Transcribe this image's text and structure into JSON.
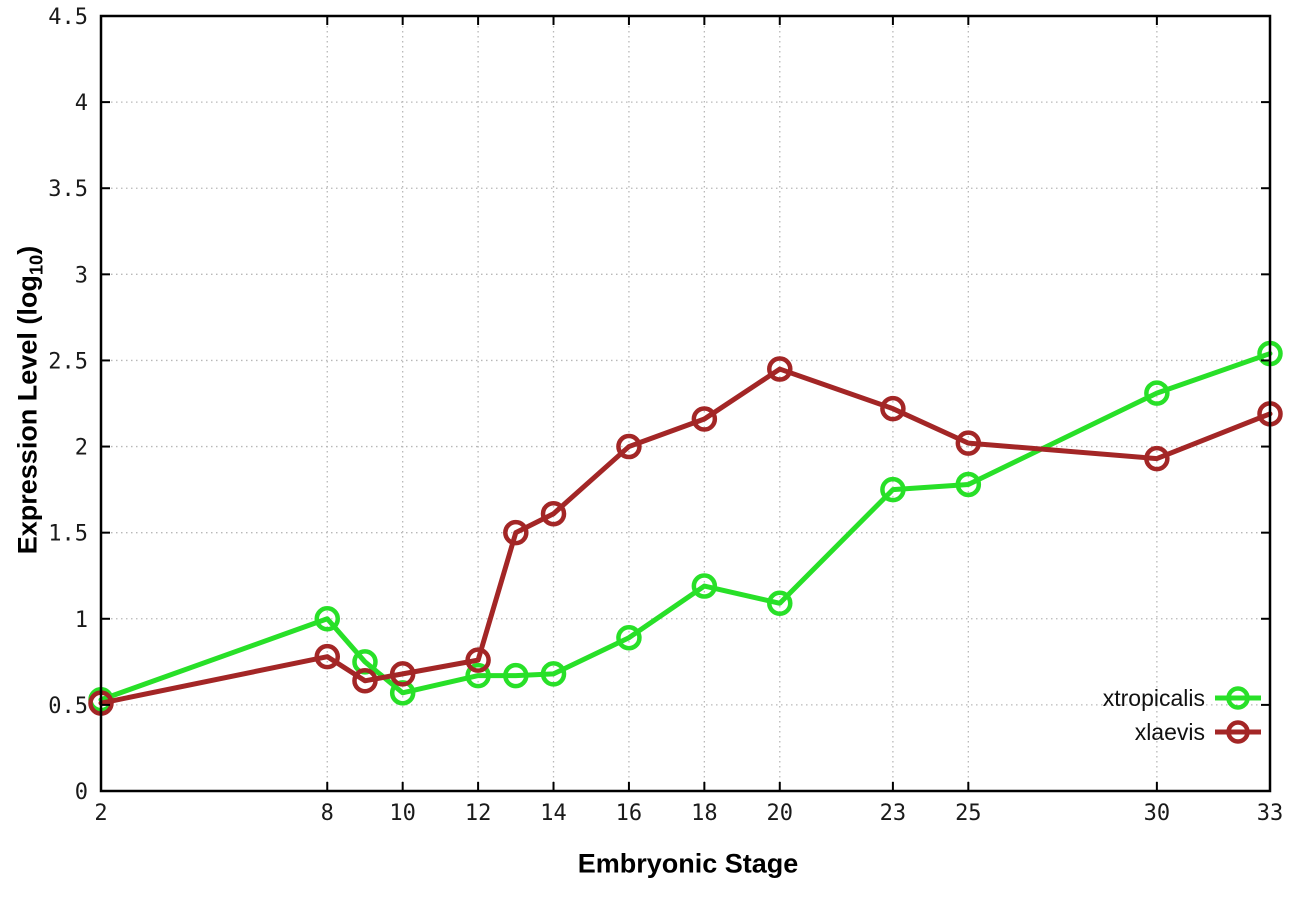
{
  "chart_data": {
    "type": "line",
    "title": "",
    "xlabel": "Embryonic Stage",
    "ylabel": "Expression Level (log10)",
    "ylabel_prefix": "Expression Level (log",
    "ylabel_sub": "10",
    "ylabel_suffix": ")",
    "x": [
      2,
      8,
      9,
      10,
      12,
      13,
      14,
      16,
      18,
      20,
      23,
      25,
      30,
      33
    ],
    "x_ticks": [
      2,
      8,
      10,
      12,
      14,
      16,
      18,
      20,
      23,
      25,
      30,
      33
    ],
    "y_ticks": [
      "0",
      "0.5",
      "1",
      "1.5",
      "2",
      "2.5",
      "3",
      "3.5",
      "4",
      "4.5"
    ],
    "xlim": [
      2,
      33
    ],
    "ylim": [
      0,
      4.5
    ],
    "grid": true,
    "legend_position": "bottom-right",
    "series": [
      {
        "name": "xtropicalis",
        "color": "#28e028",
        "values": [
          0.53,
          1.0,
          0.75,
          0.57,
          0.67,
          0.67,
          0.68,
          0.89,
          1.19,
          1.09,
          1.75,
          1.78,
          2.31,
          2.54
        ]
      },
      {
        "name": "xlaevis",
        "color": "#a32626",
        "values": [
          0.51,
          0.78,
          0.64,
          0.68,
          0.76,
          1.5,
          1.61,
          2.0,
          2.16,
          2.45,
          2.22,
          2.02,
          1.93,
          2.19
        ]
      }
    ],
    "style": {
      "background": "#ffffff",
      "border_color": "#000000",
      "grid_color": "#b8b8b8",
      "tick_color": "#000000"
    }
  }
}
